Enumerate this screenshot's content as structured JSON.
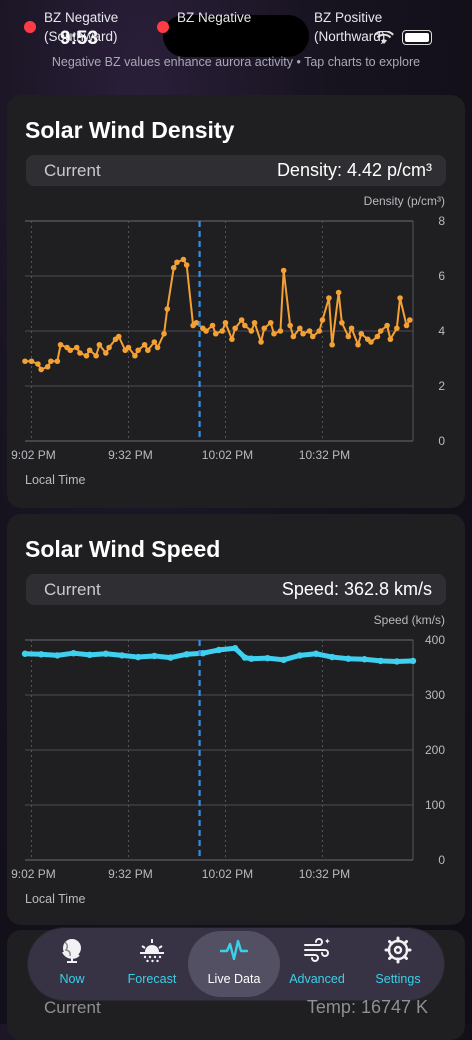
{
  "status": {
    "time": "9:53"
  },
  "legend": {
    "items": [
      {
        "label1": "BZ Negative",
        "label2": "(Southward)",
        "color": "#ff3b45"
      },
      {
        "label1": "BZ Negative",
        "label2": "",
        "color": "#ff3b45"
      },
      {
        "label1": "BZ Positive",
        "label2": "(Northward)",
        "color": ""
      }
    ],
    "note": "Negative BZ values enhance aurora activity • Tap charts to explore"
  },
  "density": {
    "title": "Solar Wind Density",
    "current_label": "Current",
    "current_value": "Density: 4.42 p/cm³",
    "local_time": "Local Time"
  },
  "speed": {
    "title": "Solar Wind Speed",
    "current_label": "Current",
    "current_value": "Speed: 362.8 km/s",
    "local_time": "Local Time"
  },
  "peek": {
    "current_label": "Current",
    "temp_value": "Temp: 16747 K"
  },
  "tabs": [
    {
      "label": "Now",
      "icon": "globe-icon"
    },
    {
      "label": "Forecast",
      "icon": "sunrise-icon"
    },
    {
      "label": "Live Data",
      "icon": "waveform-icon"
    },
    {
      "label": "Advanced",
      "icon": "wind-icon"
    },
    {
      "label": "Settings",
      "icon": "gear-icon"
    }
  ],
  "colors": {
    "accent": "#39d1e8",
    "density_line": "#f5a033",
    "speed_line": "#3fd0ef",
    "marker": "#2f8fe8"
  },
  "chart_data": [
    {
      "type": "line",
      "title": "Solar Wind Density",
      "ylabel": "Density (p/cm³)",
      "xlabel": "Local Time",
      "ylim": [
        0,
        8
      ],
      "yticks": [
        0,
        2,
        4,
        6,
        8
      ],
      "xtick_labels": [
        "9:02 PM",
        "9:32 PM",
        "10:02 PM",
        "10:32 PM"
      ],
      "x_minutes_from_902": [
        -2,
        0,
        2,
        3,
        5,
        6,
        8,
        9,
        11,
        12,
        14,
        15,
        17,
        18,
        20,
        21,
        23,
        24,
        26,
        27,
        29,
        30,
        32,
        33,
        35,
        36,
        38,
        39,
        41,
        42,
        44,
        45,
        47,
        48,
        50,
        51,
        53,
        54,
        56,
        57,
        59,
        60,
        62,
        63,
        65,
        66,
        68,
        69,
        71,
        72,
        74,
        75,
        77,
        78,
        80,
        81,
        83,
        84,
        86,
        87,
        89,
        90,
        92,
        93,
        95,
        96,
        98,
        99,
        101,
        102,
        104,
        105,
        107,
        108,
        110,
        111,
        113,
        114,
        116,
        117
      ],
      "values": [
        2.9,
        2.9,
        2.8,
        2.6,
        2.7,
        2.9,
        2.9,
        3.5,
        3.4,
        3.3,
        3.4,
        3.2,
        3.1,
        3.3,
        3.1,
        3.5,
        3.2,
        3.4,
        3.7,
        3.8,
        3.3,
        3.4,
        3.1,
        3.3,
        3.5,
        3.3,
        3.6,
        3.4,
        3.9,
        4.8,
        6.3,
        6.5,
        6.6,
        6.4,
        4.2,
        4.3,
        4.1,
        4.0,
        4.2,
        3.9,
        4.0,
        4.3,
        3.7,
        4.1,
        4.4,
        4.2,
        4.0,
        4.3,
        3.6,
        4.1,
        4.3,
        3.9,
        4.0,
        6.2,
        4.2,
        3.8,
        4.1,
        3.9,
        4.0,
        3.8,
        4.0,
        4.4,
        5.2,
        3.5,
        5.4,
        4.3,
        3.8,
        4.1,
        3.5,
        3.9,
        3.7,
        3.6,
        3.8,
        4.0,
        4.2,
        3.7,
        4.1,
        5.2,
        4.2,
        4.4
      ],
      "series": [
        {
          "name": "",
          "color": "#f5a033"
        }
      ],
      "marker_x_minutes": 52,
      "grid": true
    },
    {
      "type": "line",
      "title": "Solar Wind Speed",
      "ylabel": "Speed (km/s)",
      "xlabel": "Local Time",
      "ylim": [
        0,
        400
      ],
      "yticks": [
        0,
        100,
        200,
        300,
        400
      ],
      "xtick_labels": [
        "9:02 PM",
        "9:32 PM",
        "10:02 PM",
        "10:32 PM"
      ],
      "x_minutes_from_902": [
        -2,
        3,
        8,
        13,
        18,
        23,
        28,
        33,
        38,
        43,
        48,
        53,
        58,
        63,
        66,
        68,
        73,
        78,
        83,
        88,
        93,
        98,
        103,
        108,
        113,
        118
      ],
      "values": [
        375,
        374,
        372,
        376,
        373,
        375,
        372,
        369,
        371,
        368,
        374,
        376,
        382,
        385,
        368,
        366,
        367,
        364,
        372,
        375,
        369,
        366,
        365,
        362,
        361,
        362
      ],
      "series": [
        {
          "name": "",
          "color": "#3fd0ef"
        }
      ],
      "marker_x_minutes": 52,
      "grid": true
    }
  ]
}
